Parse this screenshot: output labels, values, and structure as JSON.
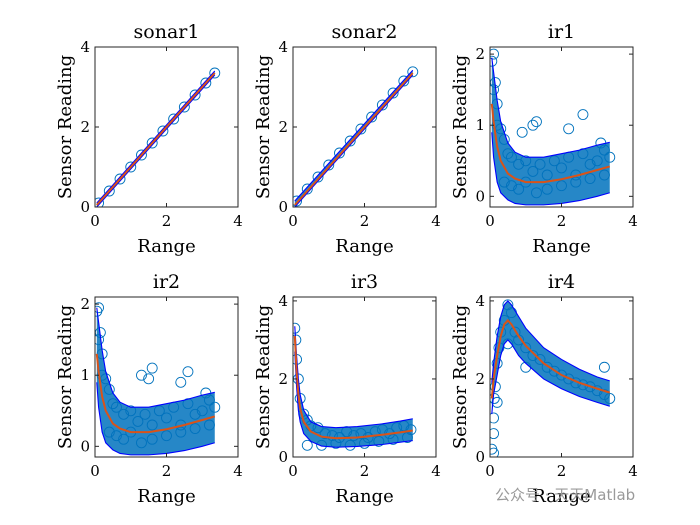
{
  "chart_data": [
    {
      "type": "scatter",
      "title": "sonar1",
      "xlabel": "Range",
      "ylabel": "Sensor Reading",
      "xlim": [
        0,
        4
      ],
      "ylim": [
        0,
        4
      ],
      "xticks": [
        "0",
        "2",
        "4"
      ],
      "yticks": [
        "0",
        "2",
        "4"
      ],
      "series": [
        {
          "kind": "points",
          "x": [
            0.1,
            0.4,
            0.7,
            1.0,
            1.3,
            1.6,
            1.9,
            2.2,
            2.5,
            2.8,
            3.1,
            3.35
          ],
          "y": [
            0.1,
            0.4,
            0.7,
            1.0,
            1.3,
            1.6,
            1.9,
            2.2,
            2.5,
            2.8,
            3.1,
            3.35
          ]
        },
        {
          "kind": "mean",
          "x": [
            0.05,
            3.35
          ],
          "y": [
            0.05,
            3.35
          ]
        },
        {
          "kind": "upper",
          "x": [
            0.05,
            3.35
          ],
          "y": [
            0.1,
            3.4
          ]
        },
        {
          "kind": "lower",
          "x": [
            0.05,
            3.35
          ],
          "y": [
            0.0,
            3.3
          ]
        }
      ]
    },
    {
      "type": "scatter",
      "title": "sonar2",
      "xlabel": "Range",
      "ylabel": "Sensor Reading",
      "xlim": [
        0,
        4
      ],
      "ylim": [
        0,
        4
      ],
      "xticks": [
        "0",
        "2",
        "4"
      ],
      "yticks": [
        "0",
        "2",
        "4"
      ],
      "series": [
        {
          "kind": "points",
          "x": [
            0.1,
            0.4,
            0.7,
            1.0,
            1.3,
            1.6,
            1.9,
            2.2,
            2.5,
            2.8,
            3.1,
            3.35
          ],
          "y": [
            0.15,
            0.45,
            0.75,
            1.05,
            1.35,
            1.65,
            1.95,
            2.25,
            2.55,
            2.85,
            3.15,
            3.38
          ]
        },
        {
          "kind": "mean",
          "x": [
            0.05,
            3.35
          ],
          "y": [
            0.05,
            3.35
          ]
        },
        {
          "kind": "upper",
          "x": [
            0.05,
            3.35
          ],
          "y": [
            0.15,
            3.42
          ]
        },
        {
          "kind": "lower",
          "x": [
            0.05,
            3.35
          ],
          "y": [
            0.0,
            3.3
          ]
        }
      ]
    },
    {
      "type": "scatter",
      "title": "ir1",
      "xlabel": "Range",
      "ylabel": "Sensor Reading",
      "xlim": [
        0,
        4
      ],
      "ylim": [
        -0.15,
        2.1
      ],
      "xticks": [
        "0",
        "2",
        "4"
      ],
      "yticks": [
        "0",
        "1",
        "2"
      ],
      "series": [
        {
          "kind": "points",
          "x": [
            0.05,
            0.1,
            0.15,
            0.2,
            0.3,
            0.4,
            0.5,
            0.6,
            0.8,
            1.0,
            1.2,
            1.4,
            1.6,
            1.8,
            2.0,
            2.2,
            2.4,
            2.6,
            2.8,
            3.0,
            3.2,
            3.35,
            0.1,
            0.2,
            0.4,
            0.6,
            0.8,
            1.0,
            1.3,
            1.6,
            2.0,
            2.4,
            2.8,
            3.2,
            1.2,
            1.3,
            2.2,
            2.6,
            0.9,
            3.1
          ],
          "y": [
            1.9,
            2.0,
            1.6,
            1.3,
            0.95,
            0.8,
            0.6,
            0.55,
            0.45,
            0.5,
            0.35,
            0.45,
            0.3,
            0.5,
            0.4,
            0.55,
            0.3,
            0.6,
            0.45,
            0.5,
            0.65,
            0.55,
            1.5,
            1.0,
            0.2,
            0.15,
            0.1,
            0.2,
            0.05,
            0.1,
            0.15,
            0.2,
            0.25,
            0.3,
            1.0,
            1.05,
            0.95,
            1.15,
            0.9,
            0.75
          ]
        },
        {
          "kind": "mean",
          "x": [
            0.05,
            0.1,
            0.2,
            0.3,
            0.5,
            0.7,
            1.0,
            1.5,
            2.0,
            2.5,
            3.0,
            3.35
          ],
          "y": [
            1.3,
            1.05,
            0.7,
            0.5,
            0.32,
            0.25,
            0.2,
            0.2,
            0.24,
            0.3,
            0.37,
            0.42
          ]
        },
        {
          "kind": "upper",
          "x": [
            0.05,
            0.1,
            0.2,
            0.3,
            0.5,
            0.7,
            1.0,
            1.5,
            2.0,
            2.5,
            3.0,
            3.35
          ],
          "y": [
            1.95,
            1.75,
            1.35,
            1.05,
            0.75,
            0.62,
            0.55,
            0.55,
            0.6,
            0.65,
            0.72,
            0.76
          ]
        },
        {
          "kind": "lower",
          "x": [
            0.05,
            0.1,
            0.2,
            0.3,
            0.5,
            0.7,
            1.0,
            1.5,
            2.0,
            2.5,
            3.0,
            3.35
          ],
          "y": [
            0.9,
            0.55,
            0.2,
            0.05,
            -0.05,
            -0.1,
            -0.12,
            -0.12,
            -0.1,
            -0.06,
            0.0,
            0.05
          ]
        }
      ]
    },
    {
      "type": "scatter",
      "title": "ir2",
      "xlabel": "Range",
      "ylabel": "Sensor Reading",
      "xlim": [
        0,
        4
      ],
      "ylim": [
        -0.15,
        2.1
      ],
      "xticks": [
        "0",
        "2",
        "4"
      ],
      "yticks": [
        "0",
        "1",
        "2"
      ],
      "series": [
        {
          "kind": "points",
          "x": [
            0.05,
            0.1,
            0.15,
            0.2,
            0.3,
            0.4,
            0.5,
            0.6,
            0.8,
            1.0,
            1.2,
            1.4,
            1.6,
            1.8,
            2.0,
            2.2,
            2.4,
            2.6,
            2.8,
            3.0,
            3.2,
            3.35,
            0.1,
            0.2,
            0.4,
            0.6,
            0.8,
            1.0,
            1.3,
            1.6,
            2.0,
            2.4,
            2.8,
            3.2,
            1.3,
            1.5,
            1.6,
            2.4,
            2.6,
            3.1
          ],
          "y": [
            1.9,
            1.95,
            1.6,
            1.3,
            0.95,
            0.8,
            0.6,
            0.55,
            0.45,
            0.5,
            0.35,
            0.45,
            0.3,
            0.5,
            0.4,
            0.55,
            0.3,
            0.6,
            0.45,
            0.5,
            0.65,
            0.55,
            1.5,
            1.0,
            0.2,
            0.15,
            0.1,
            0.2,
            0.05,
            0.1,
            0.15,
            0.2,
            0.25,
            0.3,
            1.0,
            0.95,
            1.1,
            0.9,
            1.05,
            0.75
          ]
        },
        {
          "kind": "mean",
          "x": [
            0.05,
            0.1,
            0.2,
            0.3,
            0.5,
            0.7,
            1.0,
            1.5,
            2.0,
            2.5,
            3.0,
            3.35
          ],
          "y": [
            1.3,
            1.05,
            0.7,
            0.5,
            0.32,
            0.25,
            0.2,
            0.2,
            0.24,
            0.3,
            0.37,
            0.42
          ]
        },
        {
          "kind": "upper",
          "x": [
            0.05,
            0.1,
            0.2,
            0.3,
            0.5,
            0.7,
            1.0,
            1.5,
            2.0,
            2.5,
            3.0,
            3.35
          ],
          "y": [
            1.95,
            1.75,
            1.35,
            1.05,
            0.75,
            0.62,
            0.55,
            0.55,
            0.6,
            0.65,
            0.72,
            0.76
          ]
        },
        {
          "kind": "lower",
          "x": [
            0.05,
            0.1,
            0.2,
            0.3,
            0.5,
            0.7,
            1.0,
            1.5,
            2.0,
            2.5,
            3.0,
            3.35
          ],
          "y": [
            0.9,
            0.55,
            0.2,
            0.05,
            -0.05,
            -0.1,
            -0.12,
            -0.12,
            -0.1,
            -0.06,
            0.0,
            0.05
          ]
        }
      ]
    },
    {
      "type": "scatter",
      "title": "ir3",
      "xlabel": "Range",
      "ylabel": "Sensor Reading",
      "xlim": [
        0,
        4
      ],
      "ylim": [
        0,
        4.1
      ],
      "xticks": [
        "0",
        "2",
        "4"
      ],
      "yticks": [
        "0",
        "2",
        "4"
      ],
      "series": [
        {
          "kind": "points",
          "x": [
            0.05,
            0.08,
            0.1,
            0.15,
            0.2,
            0.3,
            0.4,
            0.5,
            0.7,
            0.9,
            1.1,
            1.3,
            1.5,
            1.7,
            1.9,
            2.1,
            2.3,
            2.5,
            2.7,
            2.9,
            3.1,
            3.3,
            0.4,
            0.8,
            1.2,
            1.6,
            2.0,
            2.4,
            2.8,
            3.2
          ],
          "y": [
            3.3,
            3.0,
            2.5,
            2.0,
            1.5,
            1.1,
            0.95,
            0.8,
            0.75,
            0.6,
            0.55,
            0.5,
            0.65,
            0.55,
            0.6,
            0.5,
            0.65,
            0.7,
            0.6,
            0.75,
            0.8,
            0.7,
            0.3,
            0.3,
            0.35,
            0.3,
            0.35,
            0.4,
            0.45,
            0.5
          ]
        },
        {
          "kind": "mean",
          "x": [
            0.05,
            0.1,
            0.15,
            0.2,
            0.3,
            0.5,
            0.8,
            1.2,
            1.8,
            2.5,
            3.0,
            3.35
          ],
          "y": [
            3.1,
            2.2,
            1.6,
            1.25,
            0.9,
            0.65,
            0.52,
            0.48,
            0.5,
            0.57,
            0.63,
            0.68
          ]
        },
        {
          "kind": "upper",
          "x": [
            0.05,
            0.1,
            0.15,
            0.2,
            0.3,
            0.5,
            0.8,
            1.2,
            1.8,
            2.5,
            3.0,
            3.35
          ],
          "y": [
            3.35,
            2.6,
            2.0,
            1.6,
            1.2,
            0.9,
            0.78,
            0.75,
            0.78,
            0.85,
            0.92,
            0.98
          ]
        },
        {
          "kind": "lower",
          "x": [
            0.05,
            0.1,
            0.15,
            0.2,
            0.3,
            0.5,
            0.8,
            1.2,
            1.8,
            2.5,
            3.0,
            3.35
          ],
          "y": [
            2.7,
            1.8,
            1.2,
            0.9,
            0.6,
            0.4,
            0.28,
            0.25,
            0.27,
            0.32,
            0.38,
            0.42
          ]
        }
      ]
    },
    {
      "type": "scatter",
      "title": "ir4",
      "xlabel": "Range",
      "ylabel": "Sensor Reading",
      "xlim": [
        0,
        4
      ],
      "ylim": [
        0,
        4.1
      ],
      "xticks": [
        "0",
        "2",
        "4"
      ],
      "yticks": [
        "0",
        "2",
        "4"
      ],
      "series": [
        {
          "kind": "points",
          "x": [
            0.05,
            0.1,
            0.1,
            0.12,
            0.15,
            0.2,
            0.25,
            0.3,
            0.4,
            0.5,
            0.6,
            0.7,
            0.8,
            1.0,
            1.2,
            1.4,
            1.6,
            1.8,
            2.0,
            2.2,
            2.4,
            2.6,
            2.8,
            3.0,
            3.2,
            3.35,
            0.1,
            0.2,
            0.5,
            1.0,
            3.2
          ],
          "y": [
            0.2,
            0.6,
            1.0,
            1.5,
            1.8,
            2.4,
            2.8,
            3.2,
            3.5,
            3.9,
            3.7,
            3.2,
            3.0,
            2.8,
            2.6,
            2.5,
            2.3,
            2.2,
            2.1,
            2.0,
            1.9,
            1.85,
            1.8,
            1.7,
            1.6,
            1.5,
            0.1,
            1.4,
            2.9,
            2.3,
            2.3
          ]
        },
        {
          "kind": "mean",
          "x": [
            0.05,
            0.1,
            0.2,
            0.3,
            0.4,
            0.5,
            0.6,
            0.8,
            1.0,
            1.5,
            2.0,
            2.5,
            3.0,
            3.35
          ],
          "y": [
            1.5,
            2.0,
            2.6,
            3.1,
            3.4,
            3.5,
            3.4,
            3.1,
            2.85,
            2.4,
            2.1,
            1.9,
            1.75,
            1.65
          ]
        },
        {
          "kind": "upper",
          "x": [
            0.05,
            0.1,
            0.2,
            0.3,
            0.4,
            0.5,
            0.6,
            0.8,
            1.0,
            1.5,
            2.0,
            2.5,
            3.0,
            3.35
          ],
          "y": [
            1.9,
            2.4,
            3.1,
            3.6,
            3.9,
            4.0,
            3.9,
            3.6,
            3.3,
            2.8,
            2.5,
            2.25,
            2.05,
            1.95
          ]
        },
        {
          "kind": "lower",
          "x": [
            0.05,
            0.1,
            0.2,
            0.3,
            0.4,
            0.5,
            0.6,
            0.8,
            1.0,
            1.5,
            2.0,
            2.5,
            3.0,
            3.35
          ],
          "y": [
            1.1,
            1.6,
            2.1,
            2.6,
            2.9,
            3.0,
            2.9,
            2.6,
            2.4,
            2.0,
            1.75,
            1.55,
            1.4,
            1.3
          ]
        }
      ]
    }
  ],
  "watermark": "公众号 · 天天Matlab",
  "colors": {
    "points": "#0072BD",
    "mean": "#D95319",
    "bounds": "#0000FF",
    "frame": "#262626"
  }
}
